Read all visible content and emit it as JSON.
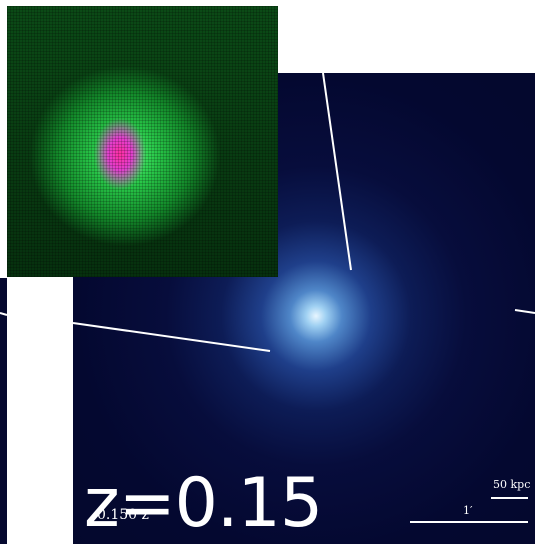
{
  "image": {
    "title_label": "z=0.15",
    "redshift_small_label": "0.150 z",
    "scale_bar_physical": "50 kpc",
    "scale_bar_angular": "1′",
    "colors": {
      "panel_background": "#03072b",
      "cluster_core": "#e8f6ff",
      "inset_green": "#27c447",
      "inset_core": "#ff2fa0",
      "lines": "#ffffff"
    }
  }
}
